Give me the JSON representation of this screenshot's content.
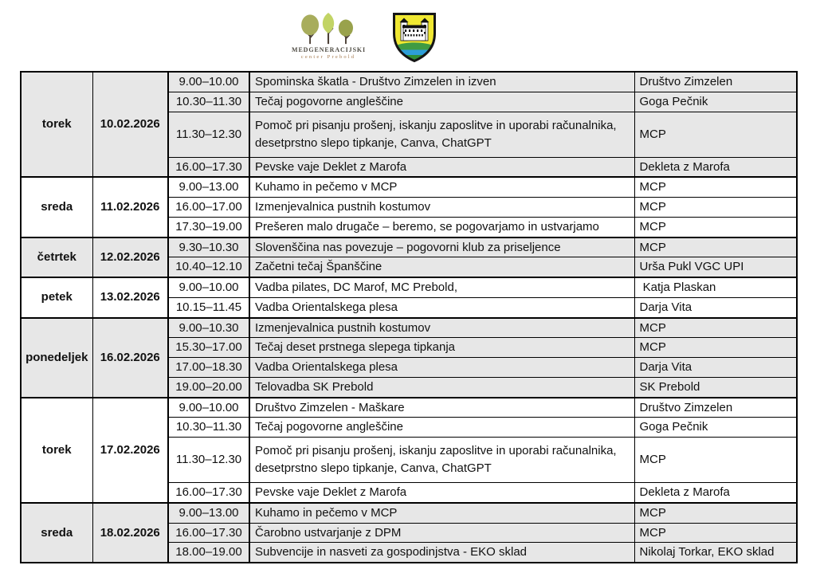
{
  "logos": {
    "mcp": {
      "title": "MEDGENERACIJSKI",
      "subtitle": "center Prebold",
      "tree_color_left": "#a8ad5c",
      "tree_color_middle": "#c2d465",
      "tree_color_right": "#99a24c",
      "trunk_color": "#4d4138",
      "title_color": "#4f4c44",
      "subtitle_color": "#a57b50"
    },
    "prebold_coat_of_arms": {
      "field_color": "#f0e832",
      "hill_color": "#3f9b43",
      "river_color": "#2d9ed8",
      "base_color": "#2f8f38",
      "castle_color": "#ffffff",
      "border_color": "#161616"
    }
  },
  "table": {
    "shaded_color": "#e7e7e7",
    "border_color": "#000000",
    "blocks": [
      {
        "day": "torek",
        "date": "10.02.2026",
        "shaded": true,
        "rows": [
          {
            "time": "9.00–10.00",
            "activity": "Spominska škatla - Društvo Zimzelen in izven",
            "organizer": "Društvo Zimzelen"
          },
          {
            "time": "10.30–11.30",
            "activity": "Tečaj pogovorne angleščine",
            "organizer": "Goga Pečnik"
          },
          {
            "time": "11.30–12.30",
            "activity": "Pomoč pri pisanju prošenj, iskanju zaposlitve in uporabi računalnika,\ndesetprstno slepo tipkanje, Canva, ChatGPT",
            "organizer": "MCP"
          },
          {
            "time": "16.00–17.30",
            "activity": "Pevske vaje Deklet z Marofa",
            "organizer": "Dekleta z Marofa"
          }
        ]
      },
      {
        "day": "sreda",
        "date": "11.02.2026",
        "shaded": false,
        "rows": [
          {
            "time": "9.00–13.00",
            "activity": "Kuhamo in pečemo v MCP",
            "organizer": "MCP"
          },
          {
            "time": "16.00–17.00",
            "activity": "Izmenjevalnica pustnih kostumov",
            "organizer": "MCP"
          },
          {
            "time": "17.30–19.00",
            "activity": "Prešeren malo drugače – beremo, se pogovarjamo in ustvarjamo",
            "organizer": "MCP"
          }
        ]
      },
      {
        "day": "četrtek",
        "date": "12.02.2026",
        "shaded": true,
        "rows": [
          {
            "time": "9.30–10.30",
            "activity": "Slovenščina nas povezuje – pogovorni klub za priseljence",
            "organizer": "MCP"
          },
          {
            "time": "10.40–12.10",
            "activity": "Začetni tečaj Španščine",
            "organizer": "Urša Pukl VGC UPI"
          }
        ]
      },
      {
        "day": "petek",
        "date": "13.02.2026",
        "shaded": false,
        "rows": [
          {
            "time": "9.00–10.00",
            "activity": "Vadba pilates, DC Marof, MC Prebold,",
            "organizer": " Katja Plaskan"
          },
          {
            "time": "10.15–11.45",
            "activity": "Vadba Orientalskega plesa",
            "organizer": "Darja Vita"
          }
        ]
      },
      {
        "day": "ponedeljek",
        "date": "16.02.2026",
        "shaded": true,
        "rows": [
          {
            "time": "9.00–10.30",
            "activity": "Izmenjevalnica pustnih kostumov",
            "organizer": "MCP"
          },
          {
            "time": "15.30–17.00",
            "activity": "Tečaj deset prstnega slepega tipkanja",
            "organizer": "MCP"
          },
          {
            "time": "17.00–18.30",
            "activity": "Vadba Orientalskega plesa",
            "organizer": "Darja Vita"
          },
          {
            "time": "19.00–20.00",
            "activity": "Telovadba SK Prebold",
            "organizer": "SK Prebold"
          }
        ]
      },
      {
        "day": "torek",
        "date": "17.02.2026",
        "shaded": false,
        "rows": [
          {
            "time": "9.00–10.00",
            "activity": "Društvo Zimzelen - Maškare",
            "organizer": "Društvo Zimzelen"
          },
          {
            "time": "10.30–11.30",
            "activity": "Tečaj pogovorne angleščine",
            "organizer": "Goga Pečnik"
          },
          {
            "time": "11.30–12.30",
            "activity": "Pomoč pri pisanju prošenj, iskanju zaposlitve in uporabi računalnika,\ndesetprstno slepo tipkanje, Canva, ChatGPT",
            "organizer": "MCP"
          },
          {
            "time": "16.00–17.30",
            "activity": "Pevske vaje Deklet z Marofa",
            "organizer": "Dekleta z Marofa"
          }
        ]
      },
      {
        "day": "sreda",
        "date": "18.02.2026",
        "shaded": true,
        "rows": [
          {
            "time": "9.00–13.00",
            "activity": "Kuhamo in pečemo v MCP",
            "organizer": "MCP"
          },
          {
            "time": "16.00–17.30",
            "activity": "Čarobno ustvarjanje z DPM",
            "organizer": "MCP"
          },
          {
            "time": "18.00–19.00",
            "activity": "Subvencije in nasveti za gospodinjstva - EKO sklad",
            "organizer": "Nikolaj Torkar, EKO sklad"
          }
        ]
      }
    ]
  }
}
